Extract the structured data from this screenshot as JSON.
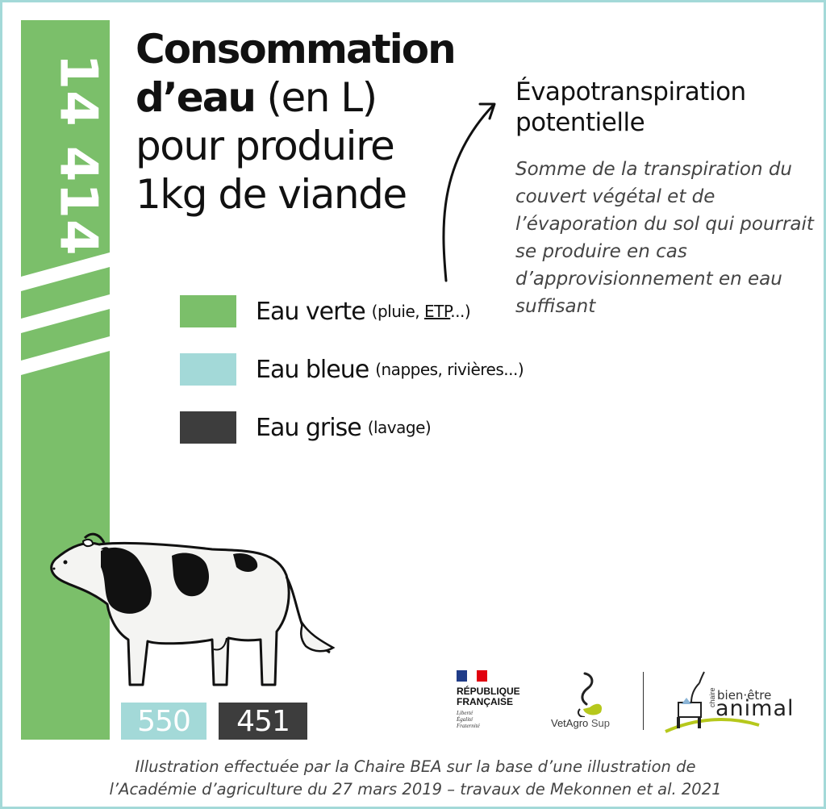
{
  "total": {
    "value": "14 414",
    "color": "#7bbf6a"
  },
  "title": {
    "bold": "Consommation d’eau",
    "unit": "(en L)",
    "rest": "pour produire 1kg de viande"
  },
  "legend": [
    {
      "label": "Eau verte",
      "note_before": "(pluie, ",
      "note_link": "ETP",
      "note_after": "...)",
      "color": "#7bbf6a"
    },
    {
      "label": "Eau bleue",
      "note": "(nappes, rivières...)",
      "color": "#a3d9d8"
    },
    {
      "label": "Eau grise",
      "note": "(lavage)",
      "color": "#3d3d3d"
    }
  ],
  "etp": {
    "title": "Évapotranspiration potentielle",
    "definition": "Somme de la transpiration du couvert végétal et de l’évaporation du sol qui pourrait se produire en cas d’approvisionnement en eau suffisant"
  },
  "values": {
    "blue": "550",
    "grey": "451"
  },
  "logos": {
    "republique": {
      "line1": "RÉPUBLIQUE",
      "line2": "FRANÇAISE",
      "motto1": "Liberté",
      "motto2": "Égalité",
      "motto3": "Fraternité"
    },
    "vetagro": {
      "name": "VetAgro",
      "suffix": "Sup"
    },
    "chaire": {
      "small": "chaire",
      "line1": "bien·être",
      "line2": "animal"
    }
  },
  "caption": {
    "line1": "Illustration effectuée par la Chaire BEA sur la base d’une illustration de",
    "line2": "l’Académie d’agriculture du 27 mars 2019 – travaux de Mekonnen et al. 2021"
  }
}
